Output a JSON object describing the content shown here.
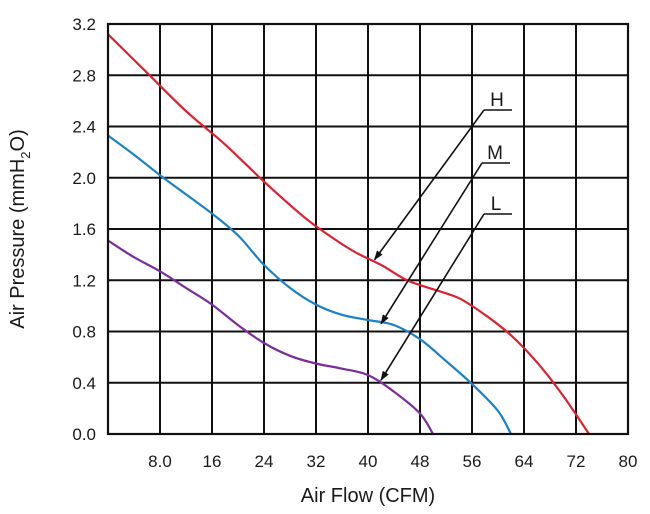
{
  "chart_data": {
    "type": "line",
    "title": "",
    "xlabel": "Air Flow (CFM)",
    "ylabel_parts": {
      "pre": "Air Pressure (mmH",
      "sub": "2",
      "post": "O)"
    },
    "xlim": [
      0,
      80
    ],
    "ylim": [
      0,
      3.2
    ],
    "grid": true,
    "x_ticks": [
      8,
      16,
      24,
      32,
      40,
      48,
      56,
      64,
      72,
      80
    ],
    "x_tick_labels": [
      "8.0",
      "16",
      "24",
      "32",
      "40",
      "48",
      "56",
      "64",
      "72",
      "80"
    ],
    "y_ticks": [
      0,
      0.4,
      0.8,
      1.2,
      1.6,
      2.0,
      2.4,
      2.8,
      3.2
    ],
    "y_tick_labels": [
      "0.0",
      "0.4",
      "0.8",
      "1.2",
      "1.6",
      "2.0",
      "2.4",
      "2.8",
      "3.2"
    ],
    "series": [
      {
        "name": "H",
        "color": "#e0202e",
        "points": [
          [
            0,
            3.12
          ],
          [
            6,
            2.82
          ],
          [
            12,
            2.52
          ],
          [
            18,
            2.26
          ],
          [
            24,
            1.97
          ],
          [
            30,
            1.7
          ],
          [
            34,
            1.55
          ],
          [
            38,
            1.42
          ],
          [
            42,
            1.32
          ],
          [
            46,
            1.2
          ],
          [
            50,
            1.13
          ],
          [
            54,
            1.06
          ],
          [
            58,
            0.93
          ],
          [
            62,
            0.77
          ],
          [
            66,
            0.56
          ],
          [
            70,
            0.3
          ],
          [
            74,
            0.0
          ]
        ]
      },
      {
        "name": "M",
        "color": "#1a82c8",
        "points": [
          [
            0,
            2.33
          ],
          [
            4,
            2.18
          ],
          [
            8,
            2.02
          ],
          [
            12,
            1.87
          ],
          [
            16,
            1.72
          ],
          [
            20,
            1.55
          ],
          [
            24,
            1.32
          ],
          [
            28,
            1.14
          ],
          [
            32,
            1.01
          ],
          [
            36,
            0.93
          ],
          [
            40,
            0.89
          ],
          [
            44,
            0.85
          ],
          [
            48,
            0.74
          ],
          [
            52,
            0.57
          ],
          [
            56,
            0.39
          ],
          [
            60,
            0.18
          ],
          [
            62,
            0.0
          ]
        ]
      },
      {
        "name": "L",
        "color": "#7b2d9e",
        "points": [
          [
            0,
            1.51
          ],
          [
            4,
            1.38
          ],
          [
            8,
            1.27
          ],
          [
            12,
            1.14
          ],
          [
            16,
            1.01
          ],
          [
            20,
            0.85
          ],
          [
            24,
            0.71
          ],
          [
            28,
            0.61
          ],
          [
            32,
            0.55
          ],
          [
            36,
            0.51
          ],
          [
            40,
            0.46
          ],
          [
            44,
            0.33
          ],
          [
            48,
            0.16
          ],
          [
            50,
            0.0
          ]
        ]
      }
    ],
    "callouts": [
      {
        "label": "H",
        "series": "H",
        "x": 41,
        "y": 1.36
      },
      {
        "label": "M",
        "series": "M",
        "x": 42,
        "y": 0.86
      },
      {
        "label": "L",
        "series": "L",
        "x": 42,
        "y": 0.42
      }
    ]
  }
}
